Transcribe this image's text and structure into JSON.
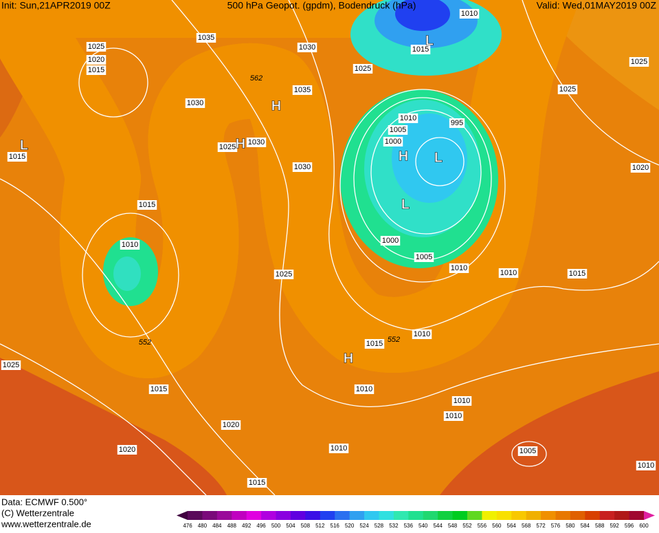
{
  "header": {
    "init": "Init: Sun,21APR2019 00Z",
    "title": "500 hPa Geopot. (gpdm), Bodendruck (hPa)",
    "valid": "Valid: Wed,01MAY2019 00Z"
  },
  "footer": {
    "data": "Data: ECMWF  0.500°",
    "copyright": "(C) Wetterzentrale",
    "url": "www.wetterzentrale.de"
  },
  "isobar_labels": [
    "1010",
    "1035",
    "1030",
    "1025",
    "1020",
    "1015",
    "1015",
    "1025",
    "1025",
    "1035",
    "1025",
    "1030",
    "1010",
    "995",
    "1005",
    "1000",
    "1030",
    "1025",
    "1015",
    "1030",
    "1020",
    "1015",
    "1010",
    "1000",
    "1005",
    "1010",
    "1010",
    "1015",
    "1025",
    "1010",
    "1015",
    "1025",
    "1015",
    "1010",
    "1010",
    "1010",
    "1020",
    "1020",
    "1010",
    "1005",
    "1015",
    "1010"
  ],
  "contour_labels": [
    "552",
    "552",
    "562"
  ],
  "pressure_centers": [
    "L",
    "H",
    "H",
    "L",
    "H",
    "L",
    "L",
    "H"
  ],
  "colorbar": {
    "ticks": [
      476,
      480,
      484,
      488,
      492,
      496,
      500,
      504,
      508,
      512,
      516,
      520,
      524,
      528,
      532,
      536,
      540,
      544,
      548,
      552,
      556,
      560,
      564,
      568,
      572,
      576,
      580,
      584,
      588,
      592,
      596,
      600
    ],
    "colors": [
      "#5a0a5a",
      "#7a0a7a",
      "#9a0a9a",
      "#c000c0",
      "#e000e0",
      "#b000e0",
      "#8a00e0",
      "#6000e0",
      "#3a10e6",
      "#2040f0",
      "#2a70f0",
      "#30a0f0",
      "#30c8f0",
      "#30e0e0",
      "#30e8b0",
      "#20e090",
      "#20d870",
      "#10d040",
      "#00cc20",
      "#60d820",
      "#f0f000",
      "#f8e000",
      "#f8c800",
      "#f0b000",
      "#f09000",
      "#e87800",
      "#e06000",
      "#d84000",
      "#c82020",
      "#b01818",
      "#a00830"
    ],
    "end_colors": [
      "#400040",
      "#e020a0"
    ]
  }
}
